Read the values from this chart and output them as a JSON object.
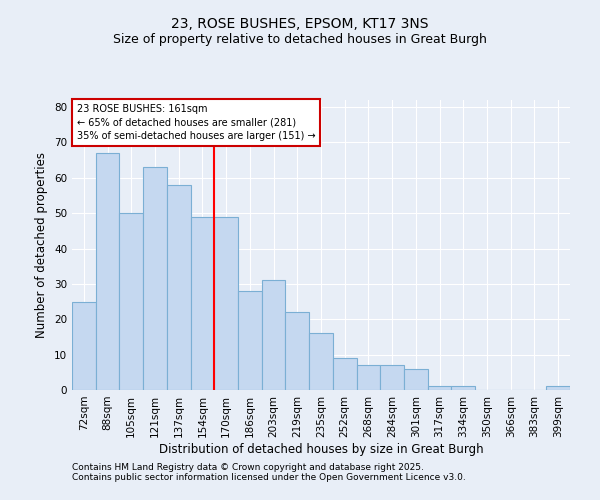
{
  "title": "23, ROSE BUSHES, EPSOM, KT17 3NS",
  "subtitle": "Size of property relative to detached houses in Great Burgh",
  "xlabel": "Distribution of detached houses by size in Great Burgh",
  "ylabel": "Number of detached properties",
  "categories": [
    "72sqm",
    "88sqm",
    "105sqm",
    "121sqm",
    "137sqm",
    "154sqm",
    "170sqm",
    "186sqm",
    "203sqm",
    "219sqm",
    "235sqm",
    "252sqm",
    "268sqm",
    "284sqm",
    "301sqm",
    "317sqm",
    "334sqm",
    "350sqm",
    "366sqm",
    "383sqm",
    "399sqm"
  ],
  "values": [
    25,
    67,
    50,
    63,
    58,
    49,
    49,
    28,
    31,
    22,
    16,
    9,
    7,
    7,
    6,
    1,
    1,
    0,
    0,
    0,
    1
  ],
  "bar_color": "#c5d8f0",
  "bar_edge_color": "#7bafd4",
  "red_line_x": 5.5,
  "annotation_line1": "23 ROSE BUSHES: 161sqm",
  "annotation_line2": "← 65% of detached houses are smaller (281)",
  "annotation_line3": "35% of semi-detached houses are larger (151) →",
  "annotation_box_color": "#ffffff",
  "annotation_box_edge_color": "#cc0000",
  "ylim": [
    0,
    82
  ],
  "yticks": [
    0,
    10,
    20,
    30,
    40,
    50,
    60,
    70,
    80
  ],
  "footer_line1": "Contains HM Land Registry data © Crown copyright and database right 2025.",
  "footer_line2": "Contains public sector information licensed under the Open Government Licence v3.0.",
  "background_color": "#e8eef7",
  "title_fontsize": 10,
  "subtitle_fontsize": 9,
  "axis_label_fontsize": 8.5,
  "tick_fontsize": 7.5,
  "annotation_fontsize": 7,
  "footer_fontsize": 6.5
}
